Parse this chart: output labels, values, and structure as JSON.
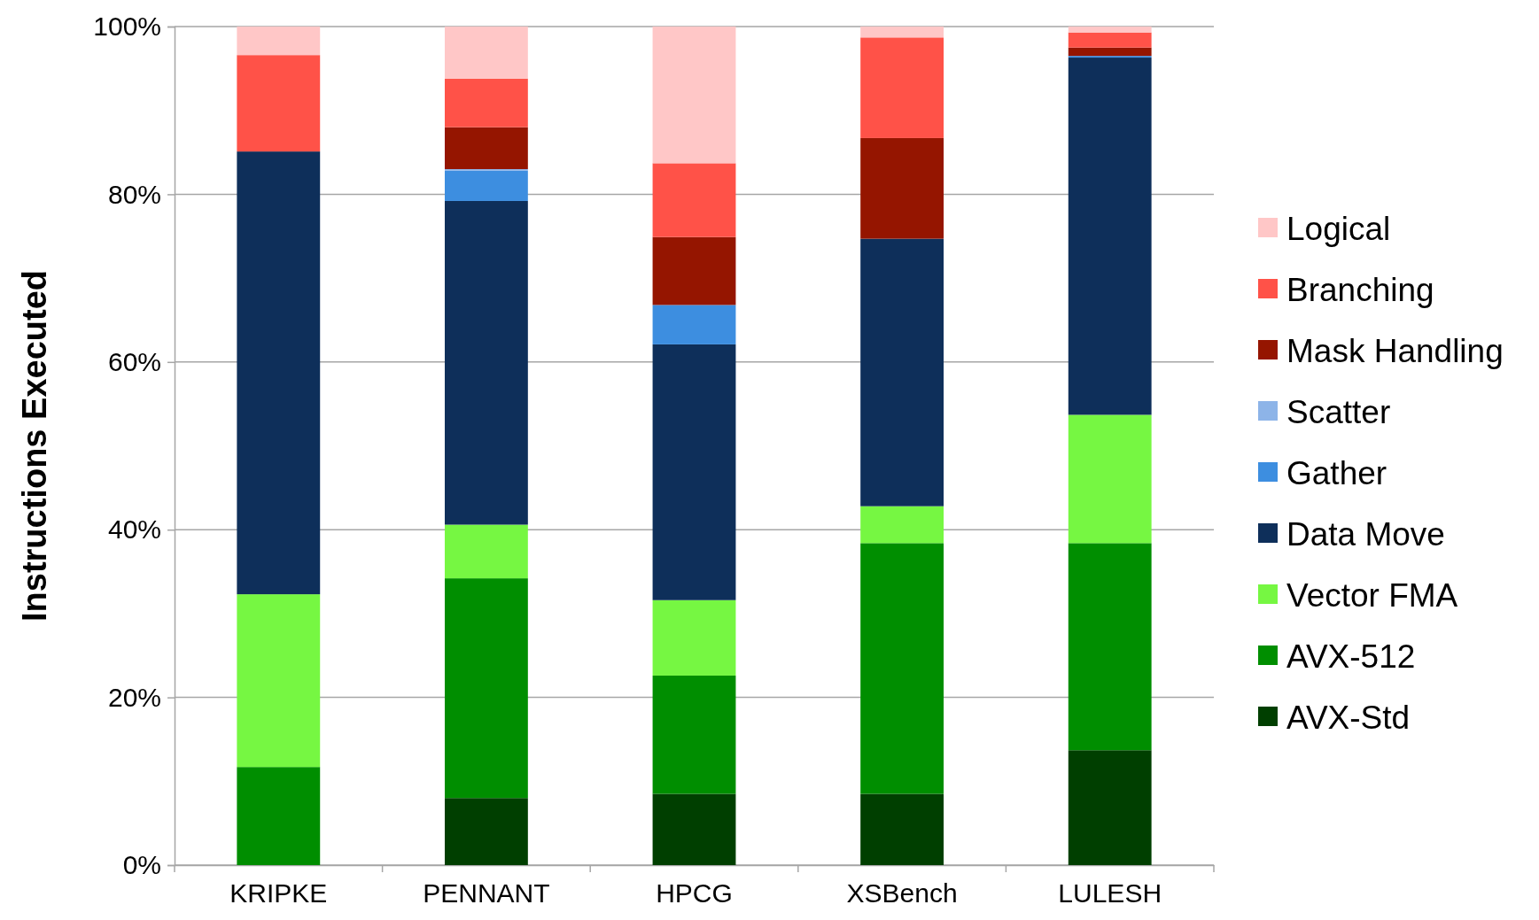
{
  "chart_data": {
    "type": "bar",
    "stacked": true,
    "ylabel": "Instructions Executed",
    "categories": [
      "KRIPKE",
      "PENNANT",
      "HPCG",
      "XSBench",
      "LULESH"
    ],
    "series": [
      {
        "name": "AVX-Std",
        "color": "#003f00",
        "values": [
          0,
          8.0,
          8.5,
          8.5,
          13.7
        ]
      },
      {
        "name": "AVX-512",
        "color": "#008e00",
        "values": [
          11.7,
          26.2,
          14.1,
          29.9,
          24.7
        ]
      },
      {
        "name": "Vector FMA",
        "color": "#76f742",
        "values": [
          20.6,
          6.4,
          9.0,
          4.4,
          15.3
        ]
      },
      {
        "name": "Data Move",
        "color": "#0e2f5a",
        "values": [
          52.8,
          38.6,
          30.5,
          31.9,
          42.6
        ]
      },
      {
        "name": "Gather",
        "color": "#3d8ee0",
        "values": [
          0,
          3.6,
          4.7,
          0,
          0.2
        ]
      },
      {
        "name": "Scatter",
        "color": "#8db4e8",
        "values": [
          0,
          0.2,
          0,
          0,
          0
        ]
      },
      {
        "name": "Mask Handling",
        "color": "#951500",
        "values": [
          0,
          5.0,
          8.1,
          12.0,
          1.0
        ]
      },
      {
        "name": "Branching",
        "color": "#ff5248",
        "values": [
          11.5,
          5.8,
          8.8,
          12.0,
          1.8
        ]
      },
      {
        "name": "Logical",
        "color": "#ffc7c7",
        "values": [
          3.4,
          6.2,
          16.3,
          1.3,
          0.7
        ]
      }
    ],
    "ylim": [
      0,
      100
    ],
    "yticks": [
      {
        "value": 0,
        "label": "0%"
      },
      {
        "value": 20,
        "label": "20%"
      },
      {
        "value": 40,
        "label": "40%"
      },
      {
        "value": 60,
        "label": "60%"
      },
      {
        "value": 80,
        "label": "80%"
      },
      {
        "value": 100,
        "label": "100%"
      }
    ],
    "grid": "y",
    "legend": "right"
  }
}
